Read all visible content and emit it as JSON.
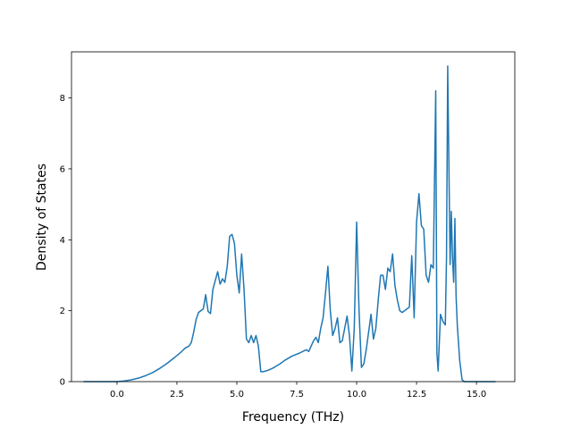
{
  "chart_data": {
    "type": "line",
    "title": "",
    "xlabel": "Frequency (THz)",
    "ylabel": "Density of States",
    "xlim": [
      -1.9,
      16.6
    ],
    "ylim": [
      0,
      9.3
    ],
    "grid": false,
    "legend": "none",
    "line_color": "#1f77b4",
    "x_ticks": [
      0.0,
      2.5,
      5.0,
      7.5,
      10.0,
      12.5,
      15.0
    ],
    "x_tick_labels": [
      "0.0",
      "2.5",
      "5.0",
      "7.5",
      "10.0",
      "12.5",
      "15.0"
    ],
    "y_ticks": [
      0,
      2,
      4,
      6,
      8
    ],
    "y_tick_labels": [
      "0",
      "2",
      "4",
      "6",
      "8"
    ],
    "series": [
      {
        "x": [
          -1.4,
          -1.0,
          -0.5,
          0.0,
          0.3,
          0.6,
          0.9,
          1.2,
          1.5,
          1.8,
          2.1,
          2.4,
          2.7,
          2.85,
          3.0,
          3.1,
          3.2,
          3.3,
          3.4,
          3.5,
          3.6,
          3.7,
          3.8,
          3.9,
          4.0,
          4.1,
          4.2,
          4.3,
          4.4,
          4.5,
          4.6,
          4.7,
          4.8,
          4.9,
          5.0,
          5.1,
          5.2,
          5.3,
          5.4,
          5.5,
          5.6,
          5.7,
          5.8,
          5.9,
          6.0,
          6.1,
          6.2,
          6.3,
          6.5,
          6.8,
          7.0,
          7.3,
          7.6,
          7.9,
          8.0,
          8.1,
          8.2,
          8.3,
          8.4,
          8.5,
          8.6,
          8.7,
          8.8,
          8.9,
          9.0,
          9.1,
          9.2,
          9.3,
          9.4,
          9.5,
          9.6,
          9.7,
          9.8,
          9.9,
          10.0,
          10.1,
          10.2,
          10.3,
          10.4,
          10.5,
          10.6,
          10.7,
          10.8,
          10.9,
          11.0,
          11.1,
          11.2,
          11.3,
          11.4,
          11.5,
          11.6,
          11.7,
          11.8,
          11.9,
          12.0,
          12.1,
          12.2,
          12.3,
          12.4,
          12.5,
          12.6,
          12.7,
          12.8,
          12.9,
          13.0,
          13.1,
          13.2,
          13.3,
          13.35,
          13.4,
          13.5,
          13.6,
          13.7,
          13.75,
          13.8,
          13.9,
          13.95,
          14.0,
          14.05,
          14.1,
          14.15,
          14.2,
          14.3,
          14.4,
          14.5,
          14.6,
          15.0,
          15.8
        ],
        "y": [
          0.0,
          0.0,
          0.0,
          0.0,
          0.02,
          0.05,
          0.1,
          0.17,
          0.26,
          0.38,
          0.52,
          0.68,
          0.85,
          0.95,
          1.0,
          1.1,
          1.4,
          1.75,
          1.95,
          2.0,
          2.05,
          2.45,
          1.98,
          1.92,
          2.6,
          2.85,
          3.1,
          2.75,
          2.9,
          2.8,
          3.25,
          4.1,
          4.15,
          3.9,
          3.0,
          2.5,
          3.6,
          2.6,
          1.2,
          1.1,
          1.3,
          1.1,
          1.3,
          1.0,
          0.28,
          0.28,
          0.3,
          0.32,
          0.38,
          0.5,
          0.6,
          0.72,
          0.8,
          0.9,
          0.85,
          1.0,
          1.15,
          1.25,
          1.1,
          1.5,
          1.8,
          2.5,
          3.25,
          2.0,
          1.3,
          1.5,
          1.8,
          1.1,
          1.15,
          1.5,
          1.85,
          1.3,
          0.3,
          1.5,
          4.5,
          2.0,
          0.4,
          0.5,
          0.9,
          1.4,
          1.9,
          1.2,
          1.5,
          2.3,
          3.0,
          3.0,
          2.6,
          3.2,
          3.1,
          3.6,
          2.7,
          2.3,
          2.0,
          1.95,
          2.0,
          2.05,
          2.1,
          3.55,
          1.8,
          4.5,
          5.3,
          4.4,
          4.3,
          3.0,
          2.8,
          3.3,
          3.2,
          8.2,
          0.8,
          0.3,
          1.9,
          1.7,
          1.6,
          3.5,
          8.9,
          3.3,
          4.8,
          3.5,
          2.8,
          4.6,
          2.4,
          1.6,
          0.6,
          0.05,
          0.0,
          0.0,
          0.0,
          0.0
        ]
      }
    ]
  }
}
